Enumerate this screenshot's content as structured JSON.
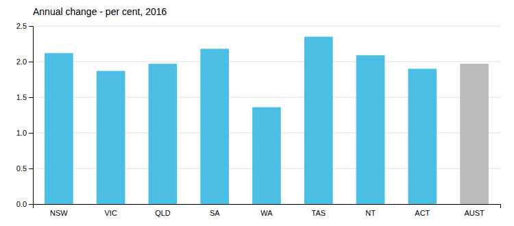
{
  "chart_data": {
    "type": "bar",
    "title": "Annual change - per cent, 2016",
    "categories": [
      "NSW",
      "VIC",
      "QLD",
      "SA",
      "WA",
      "TAS",
      "NT",
      "ACT",
      "AUST"
    ],
    "values": [
      2.12,
      1.87,
      1.97,
      2.18,
      1.36,
      2.35,
      2.09,
      1.9,
      1.97
    ],
    "colors": [
      "#4BBEE3",
      "#4BBEE3",
      "#4BBEE3",
      "#4BBEE3",
      "#4BBEE3",
      "#4BBEE3",
      "#4BBEE3",
      "#4BBEE3",
      "#BBBBBB"
    ],
    "ylim": [
      0,
      2.5
    ],
    "yticks": [
      {
        "value": 0.0,
        "label": "0.0"
      },
      0.5,
      {
        "value": 1.0,
        "label": "1.0"
      },
      1.5,
      {
        "value": 2.0,
        "label": "2.0"
      },
      2.5
    ],
    "grid": true
  }
}
